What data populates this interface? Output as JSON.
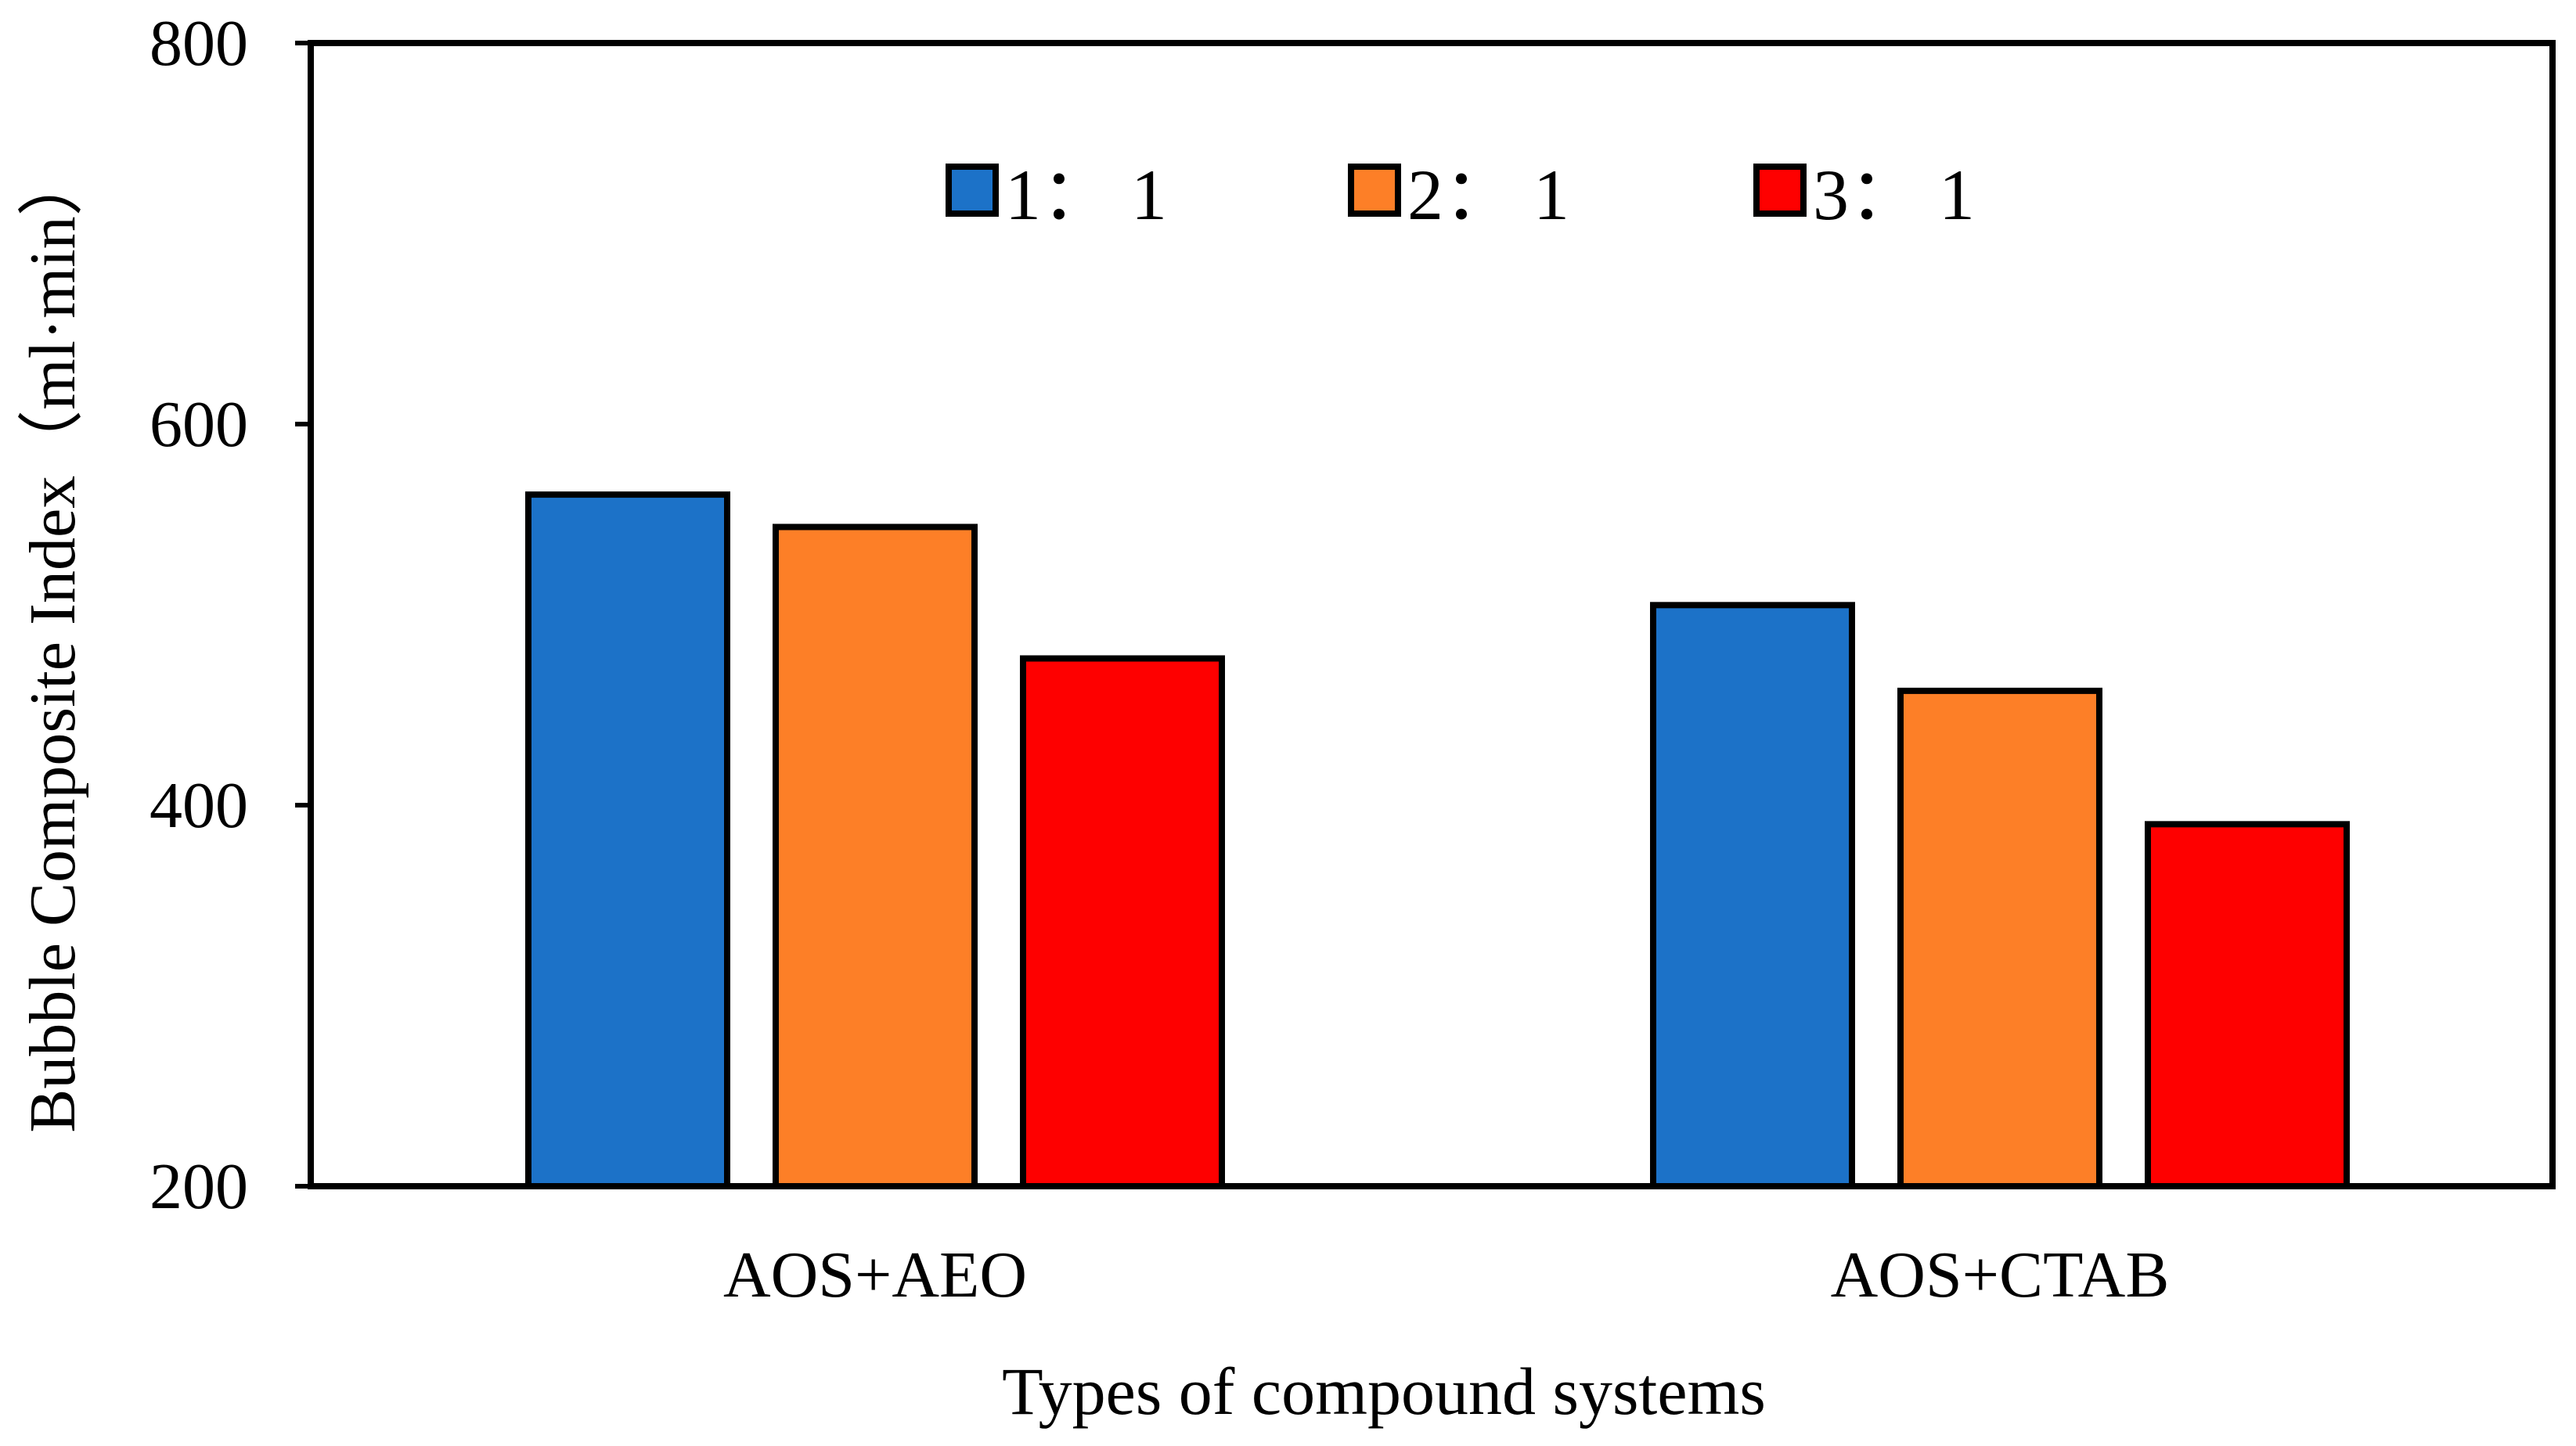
{
  "chart_data": {
    "type": "bar",
    "title": "",
    "xlabel": "Types of compound systems",
    "ylabel": "Bubble Composite Index（ml·min）",
    "categories": [
      "AOS+AEO",
      "AOS+CTAB"
    ],
    "series": [
      {
        "name": "1： 1",
        "color": "#1c72c8",
        "values": [
          563,
          505
        ]
      },
      {
        "name": "2： 1",
        "color": "#fd7f27",
        "values": [
          546,
          460
        ]
      },
      {
        "name": "3： 1",
        "color": "#fe0000",
        "values": [
          477,
          390
        ]
      }
    ],
    "ylim": [
      200,
      800
    ],
    "yticks": [
      200,
      400,
      600,
      800
    ],
    "ytick_labels": [
      "200",
      "400",
      "600",
      "800"
    ],
    "grid": false,
    "legend_position": "top-center"
  }
}
